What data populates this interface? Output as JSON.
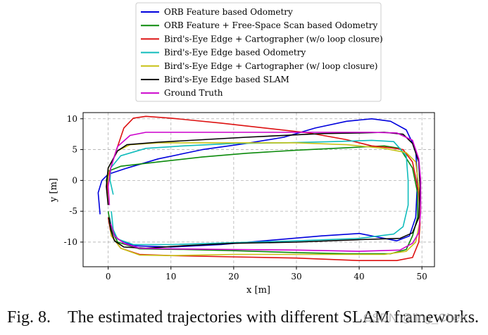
{
  "chart_data": {
    "type": "line",
    "xlabel": "x [m]",
    "ylabel": "y [m]",
    "xlim": [
      -4,
      52
    ],
    "ylim": [
      -14,
      11
    ],
    "xticks": [
      0,
      10,
      20,
      30,
      40,
      50
    ],
    "yticks": [
      10,
      5,
      0,
      -5,
      -10
    ],
    "grid": true,
    "legend_position": "top",
    "series": [
      {
        "name": "ORB Feature based Odometry",
        "color": "#0000dd",
        "points": [
          [
            -1.3,
            -5.5
          ],
          [
            -1.6,
            -2
          ],
          [
            -1,
            0
          ],
          [
            0,
            1
          ],
          [
            3,
            2
          ],
          [
            8,
            3.5
          ],
          [
            15,
            5
          ],
          [
            22,
            6
          ],
          [
            28,
            7
          ],
          [
            33,
            8.5
          ],
          [
            38,
            9.6
          ],
          [
            42,
            10
          ],
          [
            45,
            9.6
          ],
          [
            47.5,
            8.2
          ],
          [
            49,
            5
          ],
          [
            49.3,
            0
          ],
          [
            49,
            -6
          ],
          [
            48,
            -9
          ],
          [
            46,
            -9.8
          ],
          [
            40,
            -8.6
          ],
          [
            34,
            -9
          ],
          [
            26,
            -9.7
          ],
          [
            18,
            -10.4
          ],
          [
            10,
            -10.8
          ],
          [
            4,
            -10.6
          ],
          [
            1.5,
            -9.5
          ],
          [
            0.6,
            -8
          ],
          [
            0.2,
            -6
          ]
        ]
      },
      {
        "name": "ORB Feature + Free-Space Scan based Odometry",
        "color": "#0b8a0b",
        "points": [
          [
            0,
            -2
          ],
          [
            -0.3,
            0
          ],
          [
            0,
            1.5
          ],
          [
            2,
            2.3
          ],
          [
            8,
            3
          ],
          [
            15,
            3.8
          ],
          [
            22,
            4.4
          ],
          [
            30,
            4.9
          ],
          [
            38,
            5.3
          ],
          [
            44,
            5.6
          ],
          [
            46.5,
            5.2
          ],
          [
            48.5,
            2
          ],
          [
            49.3,
            -2
          ],
          [
            49.3,
            -6
          ],
          [
            48.5,
            -9
          ],
          [
            47.5,
            -11.2
          ],
          [
            45,
            -11.9
          ],
          [
            38,
            -11.9
          ],
          [
            30,
            -11.7
          ],
          [
            20,
            -11.4
          ],
          [
            12,
            -11.2
          ],
          [
            5,
            -11.1
          ],
          [
            1.5,
            -10
          ],
          [
            0.5,
            -8
          ],
          [
            0,
            -5
          ]
        ]
      },
      {
        "name": "Bird's-Eye Edge + Cartographer (w/o loop closure)",
        "color": "#dd1111",
        "points": [
          [
            0,
            -3
          ],
          [
            -0.2,
            0
          ],
          [
            1,
            4
          ],
          [
            2.5,
            8.5
          ],
          [
            4,
            10.1
          ],
          [
            6,
            10.4
          ],
          [
            10,
            10.1
          ],
          [
            18,
            9.3
          ],
          [
            25,
            8.5
          ],
          [
            32,
            7.7
          ],
          [
            38,
            6.6
          ],
          [
            42,
            5.6
          ],
          [
            45,
            5.3
          ],
          [
            47,
            5
          ],
          [
            48.5,
            3
          ],
          [
            49.5,
            -2
          ],
          [
            49.7,
            -7
          ],
          [
            49.5,
            -10
          ],
          [
            48.5,
            -12.5
          ],
          [
            46,
            -13
          ],
          [
            40,
            -13
          ],
          [
            30,
            -12.6
          ],
          [
            20,
            -12.4
          ],
          [
            10,
            -12.2
          ],
          [
            5,
            -12
          ],
          [
            2,
            -11
          ],
          [
            0.5,
            -9
          ],
          [
            0,
            -6
          ]
        ]
      },
      {
        "name": "Bird's-Eye Edge based Odometry",
        "color": "#10bcbc",
        "points": [
          [
            0.8,
            -2.3
          ],
          [
            0.3,
            0
          ],
          [
            0.4,
            2
          ],
          [
            2,
            4
          ],
          [
            6,
            5.2
          ],
          [
            12,
            5.6
          ],
          [
            20,
            6
          ],
          [
            28,
            6.1
          ],
          [
            36,
            6.3
          ],
          [
            42,
            6.5
          ],
          [
            45.5,
            6.3
          ],
          [
            47.5,
            4
          ],
          [
            47.8,
            0
          ],
          [
            47.8,
            -4
          ],
          [
            47,
            -7.5
          ],
          [
            45.5,
            -8.7
          ],
          [
            40,
            -9.4
          ],
          [
            30,
            -9.8
          ],
          [
            20,
            -10.1
          ],
          [
            10,
            -10.4
          ],
          [
            4,
            -10.4
          ],
          [
            1.5,
            -9.5
          ],
          [
            0.8,
            -8
          ],
          [
            0.5,
            -5
          ]
        ]
      },
      {
        "name": "Bird's-Eye Edge + Cartographer (w/ loop closure)",
        "color": "#c8c216",
        "points": [
          [
            0,
            -4
          ],
          [
            0,
            -1
          ],
          [
            0,
            2
          ],
          [
            1.5,
            4.8
          ],
          [
            3.5,
            5.8
          ],
          [
            8,
            6.1
          ],
          [
            15,
            6.1
          ],
          [
            22,
            6.1
          ],
          [
            30,
            6.1
          ],
          [
            38,
            5.8
          ],
          [
            44,
            5.2
          ],
          [
            47.5,
            4.5
          ],
          [
            49,
            3
          ],
          [
            49.6,
            -2
          ],
          [
            49.6,
            -7
          ],
          [
            49,
            -10
          ],
          [
            47.5,
            -11.5
          ],
          [
            44,
            -12
          ],
          [
            36,
            -12
          ],
          [
            28,
            -12
          ],
          [
            20,
            -12
          ],
          [
            10,
            -12.2
          ],
          [
            5,
            -12.1
          ],
          [
            2,
            -11
          ],
          [
            0.5,
            -9
          ],
          [
            0.1,
            -6
          ]
        ]
      },
      {
        "name": "Bird's-Eye Edge based SLAM",
        "color": "#000000",
        "points": [
          [
            0,
            -4
          ],
          [
            -0.3,
            -1
          ],
          [
            0,
            2
          ],
          [
            1.5,
            4.8
          ],
          [
            3,
            5.8
          ],
          [
            8,
            6.2
          ],
          [
            15,
            6.6
          ],
          [
            22,
            7
          ],
          [
            28,
            7.3
          ],
          [
            34,
            7.6
          ],
          [
            40,
            7.7
          ],
          [
            44,
            7.8
          ],
          [
            47,
            7.5
          ],
          [
            48.5,
            6
          ],
          [
            49.5,
            3
          ],
          [
            49.7,
            -1
          ],
          [
            49.5,
            -6
          ],
          [
            48.5,
            -8.5
          ],
          [
            46.5,
            -9.4
          ],
          [
            40,
            -9.6
          ],
          [
            30,
            -10
          ],
          [
            20,
            -10.2
          ],
          [
            12,
            -10.6
          ],
          [
            6,
            -11
          ],
          [
            2.5,
            -10.8
          ],
          [
            1,
            -9.8
          ],
          [
            0.4,
            -8
          ],
          [
            0.1,
            -6
          ]
        ]
      },
      {
        "name": "Ground Truth",
        "color": "#cc00cc",
        "points": [
          [
            0.2,
            -4
          ],
          [
            0,
            -1
          ],
          [
            0.4,
            2
          ],
          [
            1.5,
            5.5
          ],
          [
            3.5,
            7.3
          ],
          [
            6,
            7.8
          ],
          [
            15,
            7.8
          ],
          [
            25,
            7.8
          ],
          [
            35,
            7.8
          ],
          [
            42,
            7.8
          ],
          [
            46,
            7.7
          ],
          [
            48.5,
            6.5
          ],
          [
            49.5,
            3.5
          ],
          [
            49.8,
            0
          ],
          [
            49.8,
            -5
          ],
          [
            49.5,
            -8.5
          ],
          [
            48.5,
            -10.2
          ],
          [
            46.5,
            -11.3
          ],
          [
            40,
            -11.5
          ],
          [
            30,
            -11.3
          ],
          [
            20,
            -11.2
          ],
          [
            10,
            -11.1
          ],
          [
            5,
            -11
          ],
          [
            2.5,
            -10.2
          ],
          [
            1,
            -9
          ],
          [
            0.4,
            -7
          ]
        ]
      }
    ]
  },
  "caption": {
    "label": "Fig. 8.",
    "text": "The estimated trajectories with different SLAM frameworks."
  },
  "watermark": "CSDN @ling_Chen"
}
